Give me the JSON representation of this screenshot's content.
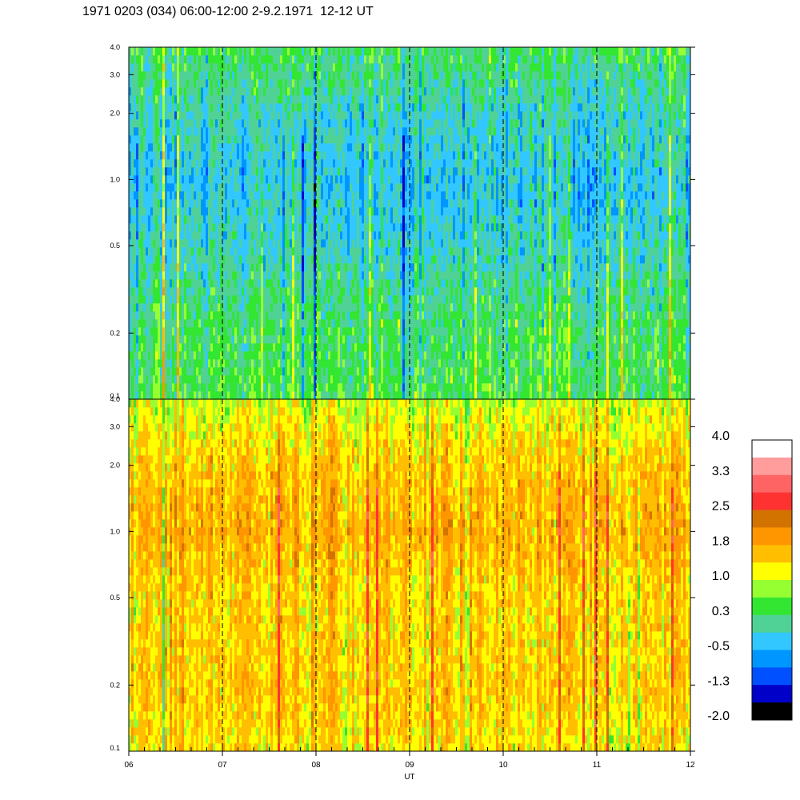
{
  "title": "1971 0203 (034) 06:00-12:00 2-9.2.1971  12-12 UT",
  "chart_data": [
    {
      "type": "heatmap",
      "panel": "top",
      "x_tick_labels": [],
      "y_tick_labels": [
        "0.1",
        "0.2",
        "0.5",
        "1.0",
        "2.0",
        "3.0",
        "4.0"
      ],
      "y_ticks": [
        0.1,
        0.2,
        0.5,
        1.0,
        2.0,
        3.0,
        4.0
      ],
      "ylim": [
        0.1,
        4.0
      ],
      "y_scale": "log",
      "xlim": [
        6,
        12
      ],
      "hour_dividers": [
        7,
        8,
        9,
        10,
        11
      ],
      "level_profile": [
        {
          "y": 0.1,
          "level": 0.4
        },
        {
          "y": 0.2,
          "level": 0.3
        },
        {
          "y": 0.5,
          "level": -0.1
        },
        {
          "y": 1.0,
          "level": -0.3
        },
        {
          "y": 2.0,
          "level": -0.1
        },
        {
          "y": 4.0,
          "level": 0.3
        }
      ]
    },
    {
      "type": "heatmap",
      "panel": "bottom",
      "x_tick_labels": [
        "06",
        "07",
        "08",
        "09",
        "10",
        "11",
        "12"
      ],
      "x_ticks": [
        6,
        7,
        8,
        9,
        10,
        11,
        12
      ],
      "xlabel": "UT",
      "y_tick_labels": [
        "0.1",
        "0.2",
        "0.5",
        "1.0",
        "2.0",
        "3.0",
        "4.0"
      ],
      "y_ticks": [
        0.1,
        0.2,
        0.5,
        1.0,
        2.0,
        3.0,
        4.0
      ],
      "ylim": [
        0.1,
        4.0
      ],
      "y_scale": "log",
      "xlim": [
        6,
        12
      ],
      "hour_dividers": [
        7,
        8,
        9,
        10,
        11
      ],
      "level_profile": [
        {
          "y": 0.1,
          "level": 1.3
        },
        {
          "y": 0.2,
          "level": 1.5
        },
        {
          "y": 0.5,
          "level": 1.4
        },
        {
          "y": 1.0,
          "level": 1.7
        },
        {
          "y": 2.0,
          "level": 1.5
        },
        {
          "y": 4.0,
          "level": 1.0
        }
      ]
    }
  ],
  "colorbar": {
    "labels": [
      "4.0",
      "3.3",
      "2.5",
      "1.8",
      "1.0",
      "0.3",
      "-0.5",
      "-1.3",
      "-2.0"
    ],
    "colors_top_to_bottom": [
      "#ffffff",
      "#ff9c9c",
      "#ff6464",
      "#ff3232",
      "#d27300",
      "#ff9600",
      "#ffbe00",
      "#ffff00",
      "#96ff32",
      "#32e632",
      "#50d296",
      "#32c8ff",
      "#0096ff",
      "#0050ff",
      "#0000c8",
      "#000000"
    ]
  }
}
